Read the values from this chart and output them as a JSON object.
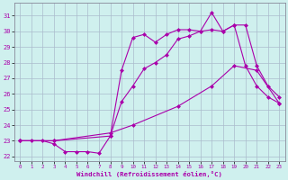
{
  "xlabel": "Windchill (Refroidissement éolien,°C)",
  "bg_color": "#cff0ee",
  "line_color": "#aa00aa",
  "grid_color": "#aabbcc",
  "xlim": [
    -0.5,
    23.5
  ],
  "ylim": [
    21.7,
    31.8
  ],
  "yticks": [
    22,
    23,
    24,
    25,
    26,
    27,
    28,
    29,
    30,
    31
  ],
  "xticks": [
    0,
    1,
    2,
    3,
    4,
    5,
    6,
    7,
    8,
    9,
    10,
    11,
    12,
    13,
    14,
    15,
    16,
    17,
    18,
    19,
    20,
    21,
    22,
    23
  ],
  "line1_x": [
    0,
    1,
    2,
    3,
    4,
    5,
    6,
    7,
    8,
    9,
    10,
    11,
    12,
    13,
    14,
    15,
    16,
    17,
    18,
    19,
    20,
    21,
    22,
    23
  ],
  "line1_y": [
    23.0,
    23.0,
    23.0,
    22.8,
    22.3,
    22.3,
    22.3,
    22.2,
    23.3,
    27.5,
    29.6,
    29.8,
    29.3,
    29.8,
    30.1,
    30.1,
    30.0,
    31.2,
    30.0,
    30.4,
    30.4,
    27.8,
    26.5,
    25.8
  ],
  "line2_x": [
    0,
    3,
    8,
    9,
    10,
    11,
    12,
    13,
    14,
    15,
    16,
    17,
    18,
    19,
    20,
    21,
    22,
    23
  ],
  "line2_y": [
    23.0,
    23.0,
    23.3,
    25.5,
    26.5,
    27.6,
    28.0,
    28.5,
    29.5,
    29.7,
    30.0,
    30.1,
    30.0,
    30.4,
    27.8,
    26.5,
    25.8,
    25.4
  ],
  "line3_x": [
    0,
    3,
    8,
    10,
    14,
    17,
    19,
    21,
    23
  ],
  "line3_y": [
    23.0,
    23.0,
    23.5,
    24.0,
    25.2,
    26.5,
    27.8,
    27.5,
    25.4
  ]
}
